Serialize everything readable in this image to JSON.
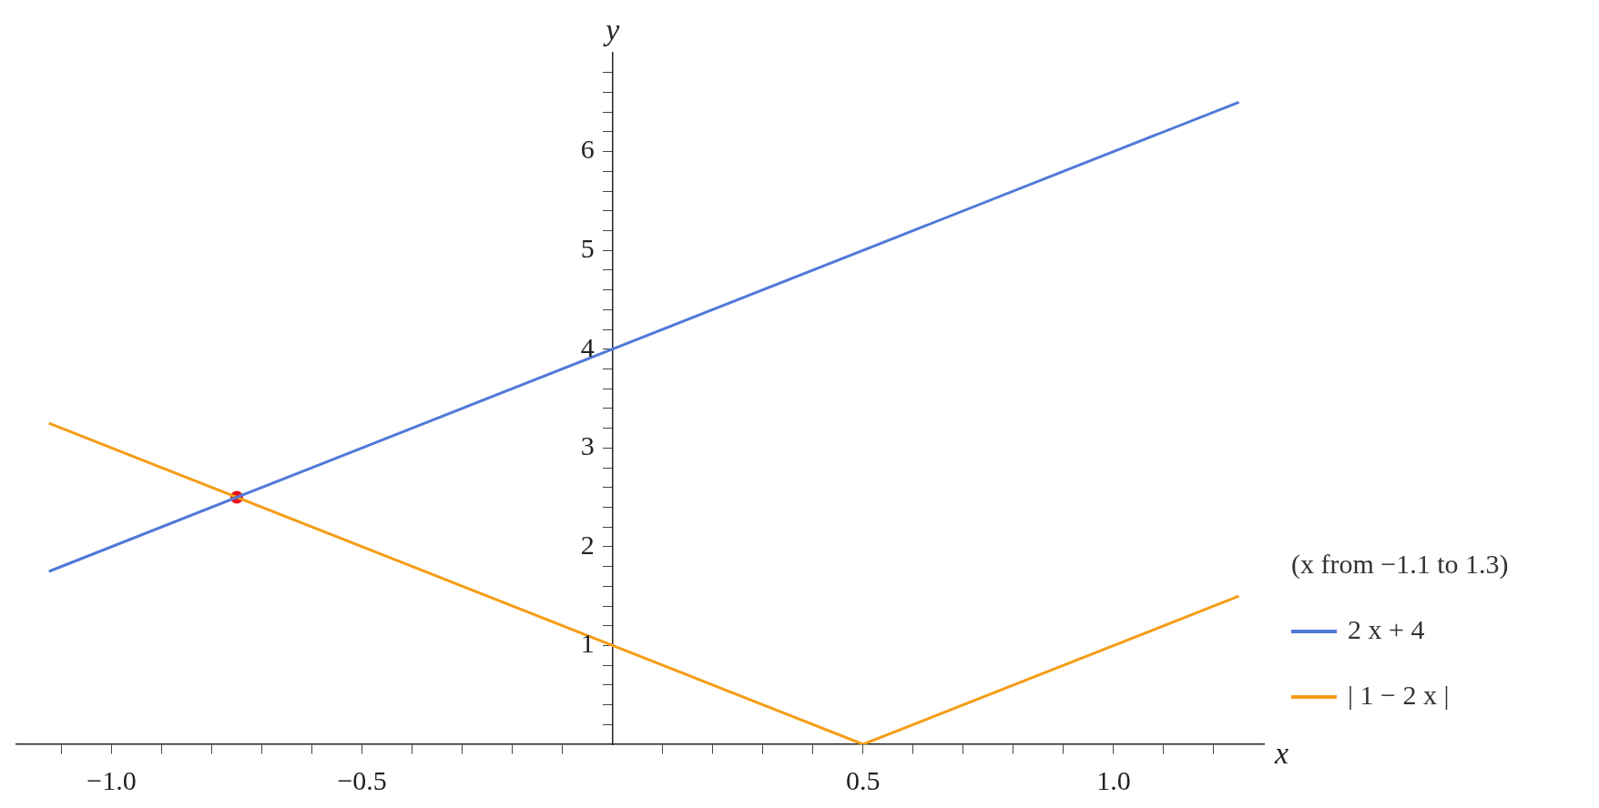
{
  "chart_data": {
    "type": "line",
    "xlabel": "x",
    "ylabel": "y",
    "legend_title": "(x from −1.1 to 1.3)",
    "legend": "right",
    "grid": false,
    "xlim": [
      -1.19,
      1.3
    ],
    "ylim": [
      0,
      7
    ],
    "xticks": [
      {
        "value": -1.1,
        "label": null
      },
      {
        "value": -1.0,
        "label": "−1.0"
      },
      {
        "value": -0.9,
        "label": null
      },
      {
        "value": -0.8,
        "label": null
      },
      {
        "value": -0.7,
        "label": null
      },
      {
        "value": -0.6,
        "label": null
      },
      {
        "value": -0.5,
        "label": "−0.5"
      },
      {
        "value": -0.4,
        "label": null
      },
      {
        "value": -0.3,
        "label": null
      },
      {
        "value": -0.2,
        "label": null
      },
      {
        "value": -0.1,
        "label": null
      },
      {
        "value": 0.1,
        "label": null
      },
      {
        "value": 0.2,
        "label": null
      },
      {
        "value": 0.3,
        "label": null
      },
      {
        "value": 0.4,
        "label": null
      },
      {
        "value": 0.5,
        "label": "0.5"
      },
      {
        "value": 0.6,
        "label": null
      },
      {
        "value": 0.7,
        "label": null
      },
      {
        "value": 0.8,
        "label": null
      },
      {
        "value": 0.9,
        "label": null
      },
      {
        "value": 1.0,
        "label": "1.0"
      },
      {
        "value": 1.1,
        "label": null
      },
      {
        "value": 1.2,
        "label": null
      }
    ],
    "yticks": [
      {
        "value": 0.2,
        "label": null
      },
      {
        "value": 0.4,
        "label": null
      },
      {
        "value": 0.6,
        "label": null
      },
      {
        "value": 0.8,
        "label": null
      },
      1,
      {
        "value": 1.2,
        "label": null
      },
      {
        "value": 1.4,
        "label": null
      },
      {
        "value": 1.6,
        "label": null
      },
      {
        "value": 1.8,
        "label": null
      },
      2,
      {
        "value": 2.2,
        "label": null
      },
      {
        "value": 2.4,
        "label": null
      },
      {
        "value": 2.6,
        "label": null
      },
      {
        "value": 2.8,
        "label": null
      },
      3,
      {
        "value": 3.2,
        "label": null
      },
      {
        "value": 3.4,
        "label": null
      },
      {
        "value": 3.6,
        "label": null
      },
      {
        "value": 3.8,
        "label": null
      },
      4,
      {
        "value": 4.2,
        "label": null
      },
      {
        "value": 4.4,
        "label": null
      },
      {
        "value": 4.6,
        "label": null
      },
      {
        "value": 4.8,
        "label": null
      },
      5,
      {
        "value": 5.2,
        "label": null
      },
      {
        "value": 5.4,
        "label": null
      },
      {
        "value": 5.6,
        "label": null
      },
      {
        "value": 5.8,
        "label": null
      },
      6,
      {
        "value": 6.2,
        "label": null
      },
      {
        "value": 6.4,
        "label": null
      },
      {
        "value": 6.6,
        "label": null
      },
      {
        "value": 6.8,
        "label": null
      }
    ],
    "series": [
      {
        "name": "2 x + 4",
        "color": "#5079d8",
        "x": [
          -1.125,
          1.25
        ],
        "values": [
          1.75,
          6.5
        ]
      },
      {
        "name": "| 1 − 2 x |",
        "color": "#f59d17",
        "x": [
          -1.125,
          0.5,
          1.25
        ],
        "values": [
          3.25,
          0,
          1.5
        ]
      },
      {
        "type": "scatter",
        "color": "#e8141c",
        "x": [
          -0.75
        ],
        "values": [
          2.5
        ]
      }
    ]
  }
}
